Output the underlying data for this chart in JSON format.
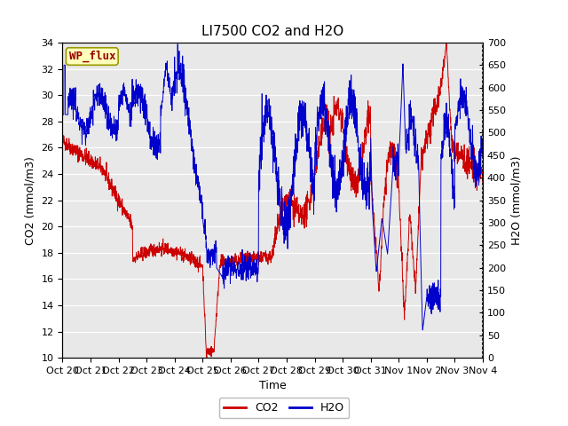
{
  "title": "LI7500 CO2 and H2O",
  "xlabel": "Time",
  "ylabel_left": "CO2 (mmol/m3)",
  "ylabel_right": "H2O (mmol/m3)",
  "co2_color": "#cc0000",
  "h2o_color": "#0000cc",
  "background_color": "#ffffff",
  "plot_bg_color": "#e8e8e8",
  "ylim_left": [
    10,
    34
  ],
  "ylim_right": [
    0,
    700
  ],
  "yticks_left": [
    10,
    12,
    14,
    16,
    18,
    20,
    22,
    24,
    26,
    28,
    30,
    32,
    34
  ],
  "yticks_right": [
    0,
    50,
    100,
    150,
    200,
    250,
    300,
    350,
    400,
    450,
    500,
    550,
    600,
    650,
    700
  ],
  "xtick_labels": [
    "Oct 20",
    "Oct 21",
    "Oct 22",
    "Oct 23",
    "Oct 24",
    "Oct 25",
    "Oct 26",
    "Oct 27",
    "Oct 28",
    "Oct 29",
    "Oct 30",
    "Oct 31",
    "Nov 1",
    "Nov 2",
    "Nov 3",
    "Nov 4"
  ],
  "watermark_text": "WP_flux",
  "watermark_bg": "#ffffbb",
  "watermark_border": "#999900",
  "watermark_color": "#990000",
  "legend_co2": "CO2",
  "legend_h2o": "H2O",
  "n_points": 2000,
  "title_fontsize": 11,
  "label_fontsize": 9,
  "tick_fontsize": 8
}
